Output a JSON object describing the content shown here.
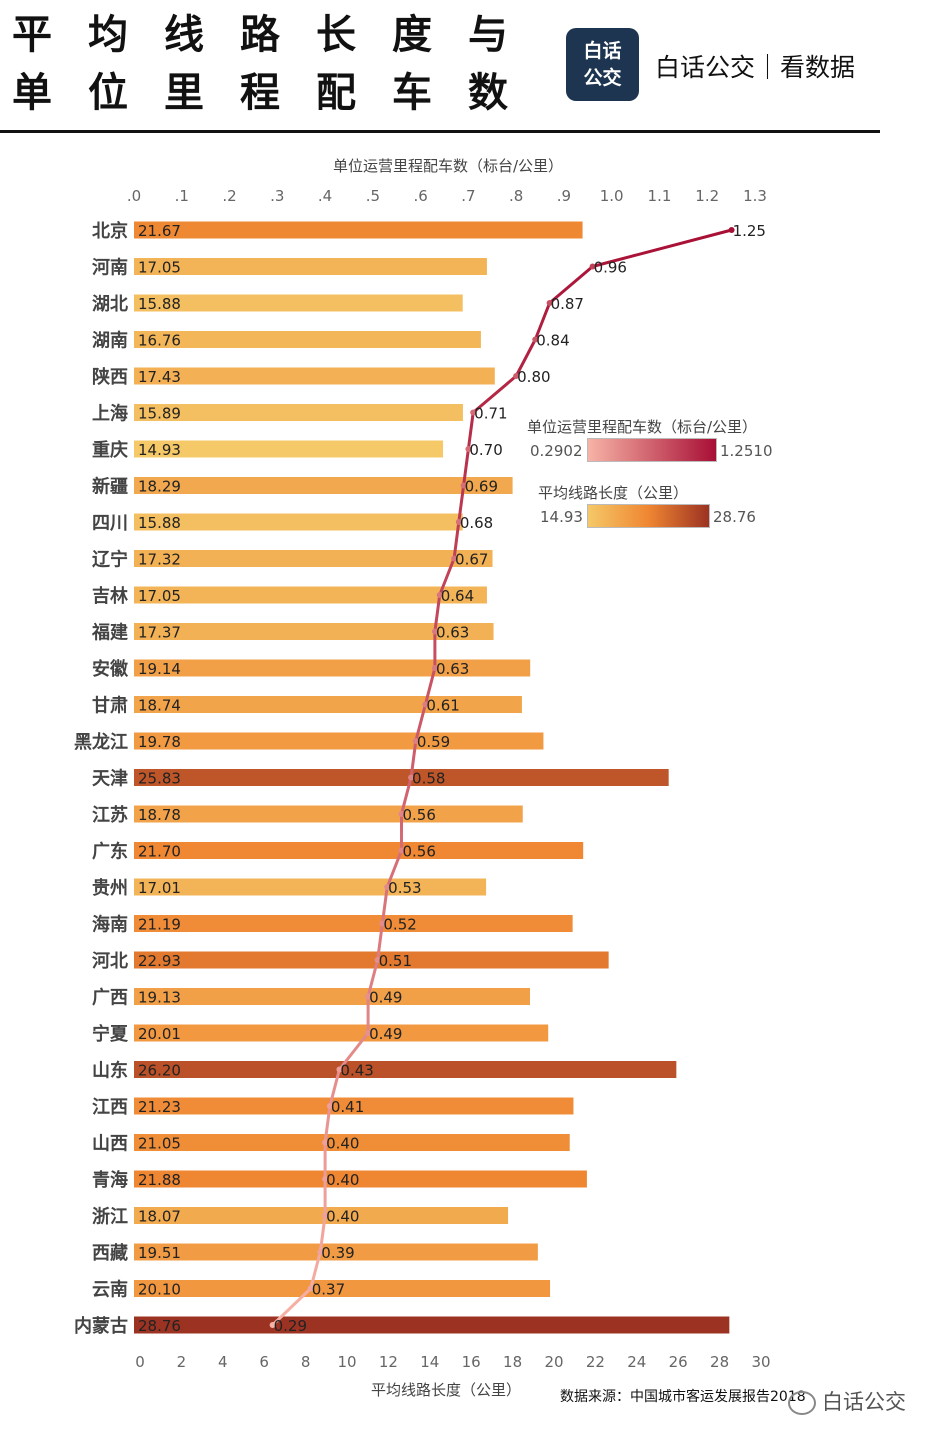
{
  "title": {
    "line1": "平均线路长度与",
    "line2": "单位里程配车数"
  },
  "logo": {
    "line1": "白话",
    "line2": "公交"
  },
  "brand": "白话公交｜看数据",
  "source": "数据来源：中国城市客运发展报告2018",
  "watermark": "白话公交",
  "legend": {
    "vehicles": {
      "title": "单位运营里程配车数（标台/公里）",
      "min": "0.2902",
      "max": "1.2510"
    },
    "length": {
      "title": "平均线路长度（公里）",
      "min": "14.93",
      "max": "28.76"
    }
  },
  "colors": {
    "bar_low": "#f5c868",
    "bar_mid": "#ef8632",
    "bar_high": "#9c3222",
    "line_low": "#f7b3a6",
    "line_high": "#a80f35"
  },
  "chart_data": {
    "type": "bar+line",
    "top_axis": {
      "title": "单位运营里程配车数（标台/公里）",
      "range": [
        0,
        1.3
      ],
      "ticks": [
        ".0",
        ".1",
        ".2",
        ".3",
        ".4",
        ".5",
        ".6",
        ".7",
        ".8",
        ".9",
        "1.0",
        "1.1",
        "1.2",
        "1.3"
      ]
    },
    "bottom_axis": {
      "title": "平均线路长度（公里）",
      "range": [
        0,
        30
      ],
      "ticks": [
        "0",
        "2",
        "4",
        "6",
        "8",
        "10",
        "12",
        "14",
        "16",
        "18",
        "20",
        "22",
        "24",
        "26",
        "28",
        "30"
      ]
    },
    "categories": [
      "北京",
      "河南",
      "湖北",
      "湖南",
      "陕西",
      "上海",
      "重庆",
      "新疆",
      "四川",
      "辽宁",
      "吉林",
      "福建",
      "安徽",
      "甘肃",
      "黑龙江",
      "天津",
      "江苏",
      "广东",
      "贵州",
      "海南",
      "河北",
      "广西",
      "宁夏",
      "山东",
      "江西",
      "山西",
      "青海",
      "浙江",
      "西藏",
      "云南",
      "内蒙古"
    ],
    "series": [
      {
        "name": "平均线路长度",
        "type": "bar",
        "values": [
          21.67,
          17.05,
          15.88,
          16.76,
          17.43,
          15.89,
          14.93,
          18.29,
          15.88,
          17.32,
          17.05,
          17.37,
          19.14,
          18.74,
          19.78,
          25.83,
          18.78,
          21.7,
          17.01,
          21.19,
          22.93,
          19.13,
          20.01,
          26.2,
          21.23,
          21.05,
          21.88,
          18.07,
          19.51,
          20.1,
          28.76
        ],
        "labels": [
          "21.67",
          "17.05",
          "15.88",
          "16.76",
          "17.43",
          "15.89",
          "14.93",
          "18.29",
          "15.88",
          "17.32",
          "17.05",
          "17.37",
          "19.14",
          "18.74",
          "19.78",
          "25.83",
          "18.78",
          "21.70",
          "17.01",
          "21.19",
          "22.93",
          "19.13",
          "20.01",
          "26.20",
          "21.23",
          "21.05",
          "21.88",
          "18.07",
          "19.51",
          "20.10",
          "28.76"
        ]
      },
      {
        "name": "单位运营里程配车数",
        "type": "line",
        "values": [
          1.251,
          0.96,
          0.87,
          0.84,
          0.8,
          0.71,
          0.7,
          0.69,
          0.68,
          0.67,
          0.64,
          0.63,
          0.63,
          0.61,
          0.59,
          0.58,
          0.56,
          0.56,
          0.53,
          0.52,
          0.51,
          0.49,
          0.49,
          0.43,
          0.41,
          0.4,
          0.4,
          0.4,
          0.39,
          0.37,
          0.2902
        ],
        "labels": [
          "1.25",
          "0.96",
          "0.87",
          "0.84",
          "0.80",
          "0.71",
          "0.70",
          "0.69",
          "0.68",
          "0.67",
          "0.64",
          "0.63",
          "0.63",
          "0.61",
          "0.59",
          "0.58",
          "0.56",
          "0.56",
          "0.53",
          "0.52",
          "0.51",
          "0.49",
          "0.49",
          "0.43",
          "0.41",
          "0.40",
          "0.40",
          "0.40",
          "0.39",
          "0.37",
          "0.29"
        ]
      }
    ]
  }
}
